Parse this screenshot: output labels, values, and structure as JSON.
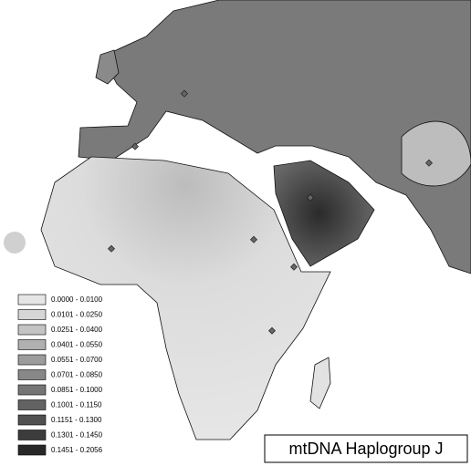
{
  "map": {
    "title": "mtDNA Haplogroup J",
    "legend": [
      {
        "label": "0.0000 - 0.0100",
        "color": "#e6e6e6"
      },
      {
        "label": "0.0101 - 0.0250",
        "color": "#d6d6d6"
      },
      {
        "label": "0.0251 - 0.0400",
        "color": "#c4c4c4"
      },
      {
        "label": "0.0401 - 0.0550",
        "color": "#b0b0b0"
      },
      {
        "label": "0.0551 - 0.0700",
        "color": "#9c9c9c"
      },
      {
        "label": "0.0701 - 0.0850",
        "color": "#888888"
      },
      {
        "label": "0.0851 - 0.1000",
        "color": "#757575"
      },
      {
        "label": "0.1001 - 0.1150",
        "color": "#626262"
      },
      {
        "label": "0.1151 - 0.1300",
        "color": "#505050"
      },
      {
        "label": "0.1301 - 0.1450",
        "color": "#3c3c3c"
      },
      {
        "label": "0.1451 - 0.2056",
        "color": "#282828"
      }
    ]
  }
}
